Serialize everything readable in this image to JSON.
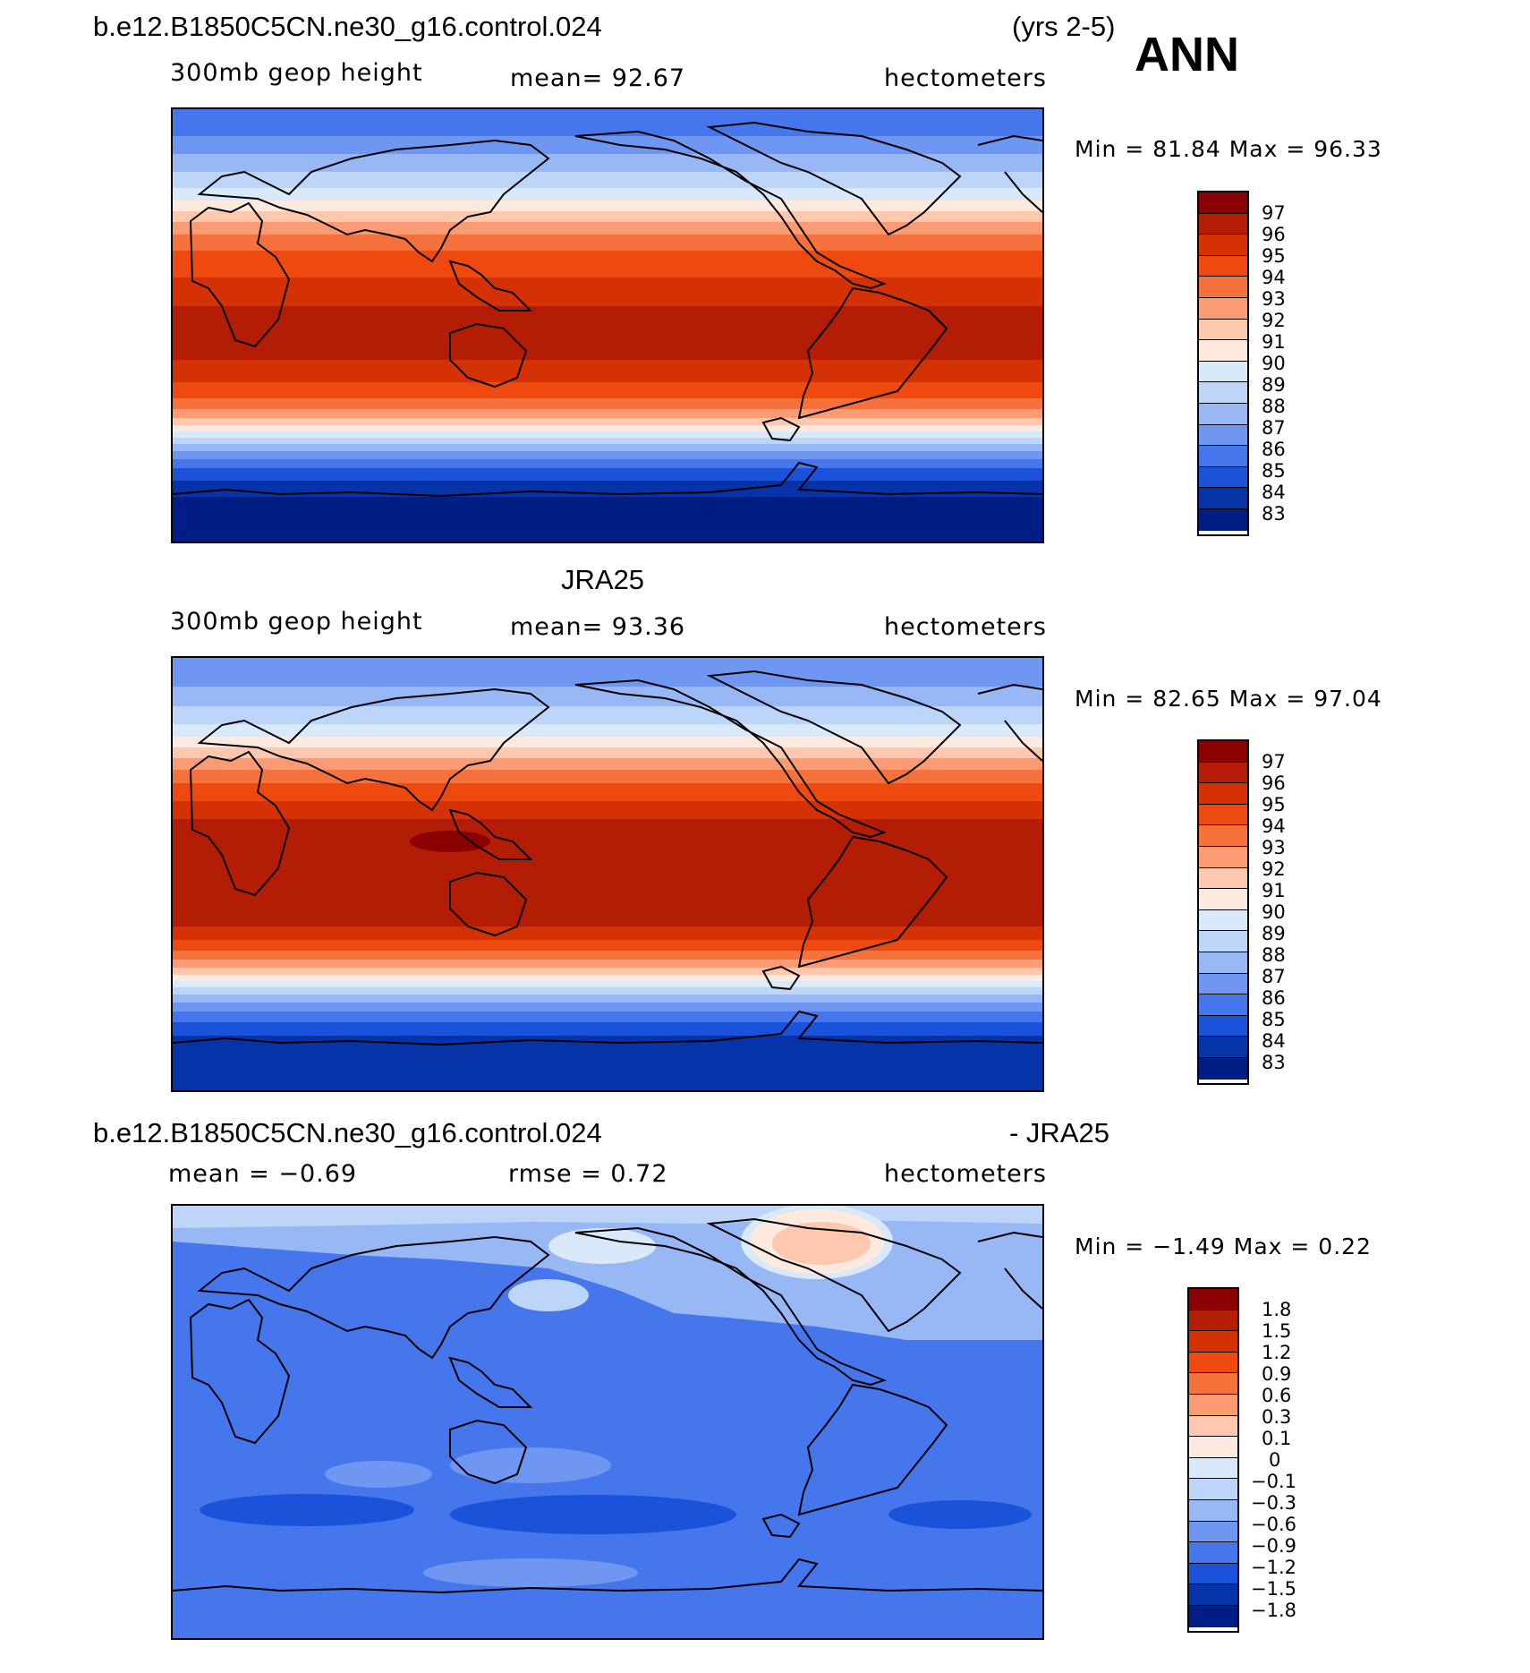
{
  "header": {
    "case_name": "b.e12.B1850C5CN.ne30_g16.control.024",
    "years": "(yrs 2-5)",
    "season": "ANN"
  },
  "panel1": {
    "title": "",
    "variable": "300mb geop height",
    "mean": "mean=   92.67",
    "units": "hectometers",
    "minmax": "Min =   81.84  Max =   96.33"
  },
  "panel2": {
    "title": "JRA25",
    "variable": "300mb geop height",
    "mean": "mean=   93.36",
    "units": "hectometers",
    "minmax": "Min =   82.65  Max =   97.04"
  },
  "panel3": {
    "title_left": "b.e12.B1850C5CN.ne30_g16.control.024",
    "title_right": "- JRA25",
    "mean": "mean =   −0.69",
    "rmse": "rmse =    0.72",
    "units": "hectometers",
    "minmax": "Min =   −1.49  Max =    0.22"
  },
  "colorbar_abs": {
    "labels": [
      "97",
      "96",
      "95",
      "94",
      "93",
      "92",
      "91",
      "90",
      "89",
      "88",
      "87",
      "86",
      "85",
      "84",
      "83"
    ],
    "colors": [
      "#8b0000",
      "#b31c05",
      "#d43104",
      "#ee4a10",
      "#f5723c",
      "#fb9b73",
      "#fdc8ad",
      "#fde9dd",
      "#d9e9f9",
      "#bcd5f8",
      "#98b8f5",
      "#6f97f2",
      "#4676ec",
      "#1a52d9",
      "#0634a8",
      "#001c85"
    ]
  },
  "colorbar_diff": {
    "labels": [
      "1.8",
      "1.5",
      "1.2",
      "0.9",
      "0.6",
      "0.3",
      "0.1",
      "0",
      "−0.1",
      "−0.3",
      "−0.6",
      "−0.9",
      "−1.2",
      "−1.5",
      "−1.8"
    ],
    "colors": [
      "#8b0000",
      "#b31c05",
      "#d43104",
      "#ee4a10",
      "#f5723c",
      "#fb9b73",
      "#fdc8ad",
      "#fde9dd",
      "#d9e9f9",
      "#bcd5f8",
      "#98b8f5",
      "#6f97f2",
      "#4676ec",
      "#1a52d9",
      "#0634a8",
      "#001c85"
    ]
  }
}
